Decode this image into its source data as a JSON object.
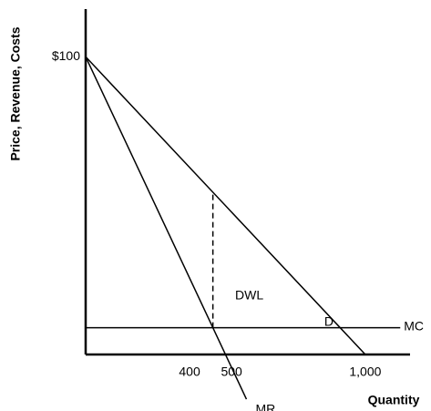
{
  "chart_data": {
    "type": "line",
    "x_label": "Quantity",
    "y_label": "Price, Revenue, Costs",
    "xlim": [
      0,
      1160
    ],
    "ylim": [
      0,
      116
    ],
    "xticks": [
      400,
      500,
      {
        "value": 1000,
        "label": "1,000"
      }
    ],
    "yticks": [
      {
        "value": 100,
        "label": "$100"
      }
    ],
    "series": [
      {
        "name": "D",
        "color": "#000000",
        "x": [
          0,
          1000
        ],
        "values": [
          100,
          0
        ]
      },
      {
        "name": "MR",
        "color": "#000000",
        "x": [
          0,
          575
        ],
        "values": [
          100,
          -15
        ]
      },
      {
        "name": "MC",
        "color": "#000000",
        "x": [
          0,
          1125
        ],
        "values": [
          9,
          9
        ]
      },
      {
        "color": "#000000",
        "x": [
          455,
          455
        ],
        "values": [
          9,
          54.5
        ],
        "dashed": true
      }
    ],
    "annotations": [
      "DWL"
    ]
  }
}
